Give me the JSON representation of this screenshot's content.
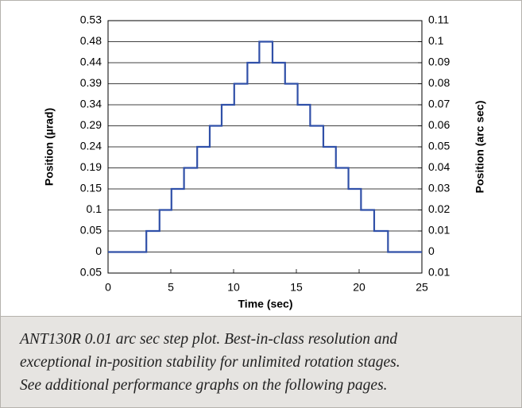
{
  "chart_data": {
    "type": "line",
    "ylabel": "Position (µrad)",
    "y2label": "Position (arc sec)",
    "xlabel": "Time (sec)",
    "xlim": [
      0,
      25
    ],
    "xticks": [
      0,
      5,
      10,
      15,
      20,
      25
    ],
    "ylim": [
      -0.0485,
      0.5333
    ],
    "yticks": [
      {
        "value": -0.0485,
        "label": "0.05"
      },
      0,
      {
        "value": 0.0485,
        "label": "0.05"
      },
      {
        "value": 0.097,
        "label": "0.1"
      },
      {
        "value": 0.1454,
        "label": "0.15"
      },
      {
        "value": 0.1939,
        "label": "0.19"
      },
      {
        "value": 0.2424,
        "label": "0.24"
      },
      {
        "value": 0.2909,
        "label": "0.29"
      },
      {
        "value": 0.3394,
        "label": "0.34"
      },
      {
        "value": 0.3878,
        "label": "0.39"
      },
      {
        "value": 0.4363,
        "label": "0.44"
      },
      {
        "value": 0.4848,
        "label": "0.48"
      },
      {
        "value": 0.5333,
        "label": "0.53"
      }
    ],
    "y2lim": [
      -0.01,
      0.11
    ],
    "y2ticks": [
      {
        "value": -0.01,
        "label": "0.01"
      },
      0,
      0.01,
      0.02,
      0.03,
      0.04,
      0.05,
      0.06,
      0.07,
      0.08,
      0.09,
      0.1,
      0.11
    ],
    "grid": true,
    "series": [
      {
        "axis": "y2",
        "color": "#3050a8",
        "x": [
          0,
          3.05,
          3.05,
          4.1,
          4.1,
          5.05,
          5.05,
          6.05,
          6.05,
          7.1,
          7.1,
          8.1,
          8.1,
          9.05,
          9.05,
          10.05,
          10.05,
          11.1,
          11.1,
          12.05,
          12.05,
          13.1,
          13.1,
          14.1,
          14.1,
          15.1,
          15.1,
          16.1,
          16.1,
          17.15,
          17.15,
          18.15,
          18.15,
          19.15,
          19.15,
          20.15,
          20.15,
          21.2,
          21.2,
          22.3,
          22.3,
          25
        ],
        "values": [
          0,
          0,
          0.01,
          0.01,
          0.02,
          0.02,
          0.03,
          0.03,
          0.04,
          0.04,
          0.05,
          0.05,
          0.06,
          0.06,
          0.07,
          0.07,
          0.08,
          0.08,
          0.09,
          0.09,
          0.1,
          0.1,
          0.09,
          0.09,
          0.08,
          0.08,
          0.07,
          0.07,
          0.06,
          0.06,
          0.05,
          0.05,
          0.04,
          0.04,
          0.03,
          0.03,
          0.02,
          0.02,
          0.01,
          0.01,
          0,
          0
        ]
      }
    ]
  },
  "caption": [
    "ANT130R 0.01 arc sec step plot. Best-in-class resolution and",
    "exceptional in-position stability for unlimited rotation stages.",
    "See additional performance graphs on the following pages."
  ]
}
